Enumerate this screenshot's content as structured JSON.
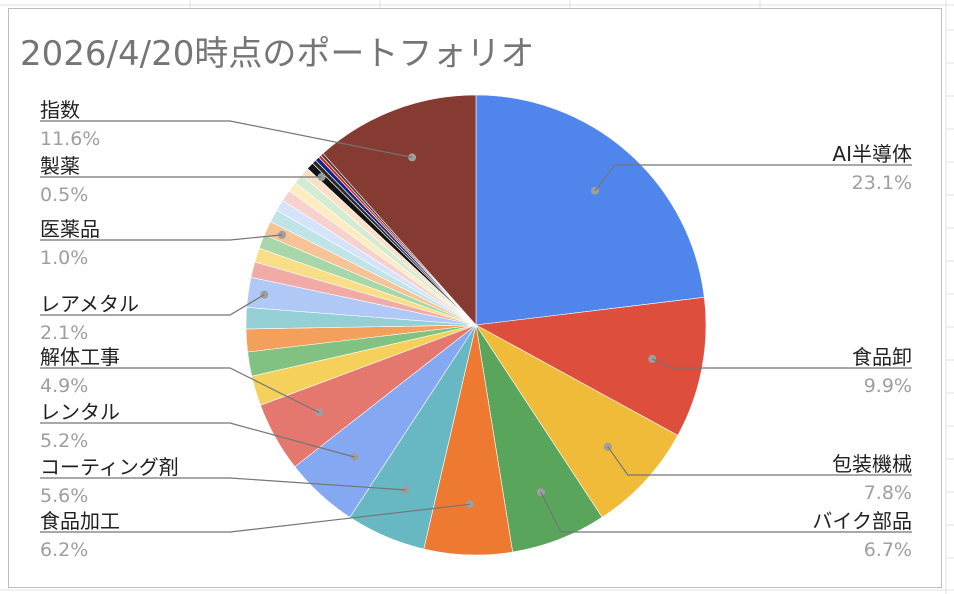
{
  "chart_data": {
    "type": "pie",
    "title": "2026/4/20時点のポートフォリオ",
    "slices": [
      {
        "label": "AI半導体",
        "value": 23.1,
        "value_label": "23.1%",
        "color": "#5086ec"
      },
      {
        "label": "食品卸",
        "value": 9.9,
        "value_label": "9.9%",
        "color": "#dd4e3c"
      },
      {
        "label": "包装機械",
        "value": 7.8,
        "value_label": "7.8%",
        "color": "#f1bb3a"
      },
      {
        "label": "バイク部品",
        "value": 6.7,
        "value_label": "6.7%",
        "color": "#5aa55c"
      },
      {
        "label": "食品加工",
        "value": 6.2,
        "value_label": "6.2%",
        "color": "#ee7930"
      },
      {
        "label": "コーティング剤",
        "value": 5.6,
        "value_label": "5.6%",
        "color": "#68b8c3"
      },
      {
        "label": "レンタル",
        "value": 5.2,
        "value_label": "5.2%",
        "color": "#85a8f2"
      },
      {
        "label": "解体工事",
        "value": 4.9,
        "value_label": "4.9%",
        "color": "#e4786f"
      },
      {
        "label": "",
        "value": 2.1,
        "value_label": "",
        "color": "#f5d05a"
      },
      {
        "label": "",
        "value": 1.7,
        "value_label": "",
        "color": "#81c283"
      },
      {
        "label": "",
        "value": 1.6,
        "value_label": "",
        "color": "#f2a05c"
      },
      {
        "label": "",
        "value": 1.5,
        "value_label": "",
        "color": "#95cfd6"
      },
      {
        "label": "レアメタル",
        "value": 2.1,
        "value_label": "2.1%",
        "color": "#b0c8f5"
      },
      {
        "label": "",
        "value": 1.1,
        "value_label": "",
        "color": "#f0aba6"
      },
      {
        "label": "",
        "value": 1.0,
        "value_label": "",
        "color": "#f8de86"
      },
      {
        "label": "",
        "value": 1.0,
        "value_label": "",
        "color": "#a7d7a8"
      },
      {
        "label": "医薬品",
        "value": 1.0,
        "value_label": "1.0%",
        "color": "#f6c397"
      },
      {
        "label": "",
        "value": 0.9,
        "value_label": "",
        "color": "#bfe4e8"
      },
      {
        "label": "",
        "value": 0.8,
        "value_label": "",
        "color": "#d6e2fa"
      },
      {
        "label": "",
        "value": 0.8,
        "value_label": "",
        "color": "#f6d1ce"
      },
      {
        "label": "",
        "value": 0.7,
        "value_label": "",
        "color": "#fcecbf"
      },
      {
        "label": "",
        "value": 0.7,
        "value_label": "",
        "color": "#d3ebd3"
      },
      {
        "label": "",
        "value": 0.6,
        "value_label": "",
        "color": "#fae0c8"
      },
      {
        "label": "製薬",
        "value": 0.5,
        "value_label": "0.5%",
        "color": "#111111"
      },
      {
        "label": "",
        "value": 0.3,
        "value_label": "",
        "color": "#2a2a2a"
      },
      {
        "label": "",
        "value": 0.3,
        "value_label": "",
        "color": "#1a237e"
      },
      {
        "label": "",
        "value": 0.2,
        "value_label": "",
        "color": "#c62828"
      },
      {
        "label": "",
        "value": 0.2,
        "value_label": "",
        "color": "#4e342e"
      },
      {
        "label": "指数",
        "value": 11.6,
        "value_label": "11.6%",
        "color": "#853b31"
      }
    ],
    "legend": "none"
  }
}
